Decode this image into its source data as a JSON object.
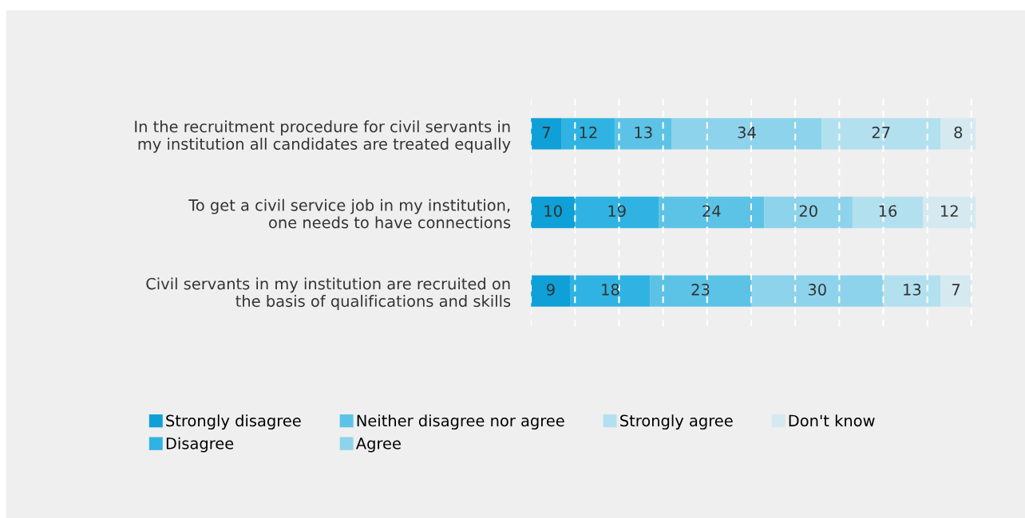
{
  "chart_data": {
    "type": "bar",
    "orientation": "horizontal",
    "stacked": true,
    "data_labels": true,
    "categories": [
      "In the recruitment procedure for civil servants in\nmy institution all candidates are treated equally",
      "To get a civil service job in my institution,\none needs to have connections",
      "Civil servants in my institution are recruited on\nthe basis of qualifications and skills"
    ],
    "series": [
      {
        "name": "Strongly disagree",
        "color": "#0ea0d6",
        "values": [
          7,
          10,
          9
        ]
      },
      {
        "name": "Disagree",
        "color": "#30b3e2",
        "values": [
          12,
          19,
          18
        ]
      },
      {
        "name": "Neither disagree nor agree",
        "color": "#5cc3e6",
        "values": [
          13,
          24,
          23
        ]
      },
      {
        "name": "Agree",
        "color": "#8ed3ec",
        "values": [
          34,
          20,
          30
        ]
      },
      {
        "name": "Strongly agree",
        "color": "#b3e0ef",
        "values": [
          27,
          16,
          13
        ]
      },
      {
        "name": "Don't know",
        "color": "#d5e9f0",
        "values": [
          8,
          12,
          7
        ]
      }
    ],
    "xlim": [
      0,
      101
    ],
    "xticks": [
      {
        "value": 0,
        "label": null
      },
      {
        "value": 10,
        "label": null
      },
      {
        "value": 20,
        "label": null
      },
      {
        "value": 30,
        "label": null
      },
      {
        "value": 40,
        "label": null
      },
      {
        "value": 50,
        "label": null
      },
      {
        "value": 60,
        "label": null
      },
      {
        "value": 70,
        "label": null
      },
      {
        "value": 80,
        "label": null
      },
      {
        "value": 90,
        "label": null
      },
      {
        "value": 100,
        "label": null
      }
    ],
    "tick_labels": "y",
    "grid": "x",
    "legend": "bottom"
  }
}
